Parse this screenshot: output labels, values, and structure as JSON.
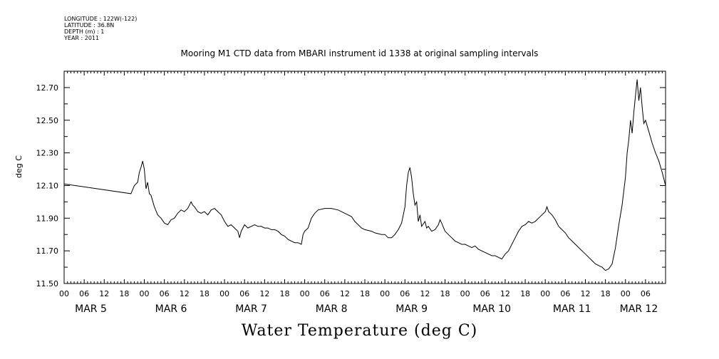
{
  "header": {
    "meta_lines": [
      "LONGITUDE : 122W(-122)",
      "LATITUDE : 36.8N",
      "DEPTH (m) : 1",
      "YEAR : 2011"
    ]
  },
  "chart_data": {
    "type": "line",
    "title": "Mooring M1 CTD data from MBARI instrument id 1338 at original sampling intervals",
    "ylabel": "deg C",
    "xlabel": "Water Temperature (deg C)",
    "ylim": [
      11.5,
      12.8
    ],
    "xlim_hours": [
      0,
      180
    ],
    "yticks": [
      11.5,
      11.7,
      11.9,
      12.1,
      12.3,
      12.5,
      12.7
    ],
    "ytick_labels": [
      "11.50",
      "11.70",
      "11.90",
      "12.10",
      "12.30",
      "12.50",
      "12.70"
    ],
    "hour_labels": [
      "00",
      "06",
      "12",
      "18",
      "00",
      "06",
      "12",
      "18",
      "00",
      "06",
      "12",
      "18",
      "00",
      "06",
      "12",
      "18",
      "00",
      "06",
      "12",
      "18",
      "00",
      "06",
      "12",
      "18",
      "00",
      "06",
      "12",
      "18",
      "00",
      "06"
    ],
    "day_labels": [
      {
        "label": "MAR  5",
        "hour": 8
      },
      {
        "label": "MAR  6",
        "hour": 32
      },
      {
        "label": "MAR  7",
        "hour": 56
      },
      {
        "label": "MAR  8",
        "hour": 80
      },
      {
        "label": "MAR  9",
        "hour": 104
      },
      {
        "label": "MAR 10",
        "hour": 128
      },
      {
        "label": "MAR 11",
        "hour": 152
      },
      {
        "label": "MAR 12",
        "hour": 172
      }
    ],
    "series": [
      {
        "color": "#000000",
        "points": [
          [
            0,
            12.11
          ],
          [
            20,
            12.05
          ],
          [
            21,
            12.1
          ],
          [
            22,
            12.12
          ],
          [
            22.5,
            12.18
          ],
          [
            23,
            12.21
          ],
          [
            23.5,
            12.25
          ],
          [
            24,
            12.2
          ],
          [
            24.5,
            12.08
          ],
          [
            25,
            12.12
          ],
          [
            25.5,
            12.05
          ],
          [
            26,
            12.04
          ],
          [
            27,
            11.97
          ],
          [
            28,
            11.92
          ],
          [
            29,
            11.9
          ],
          [
            30,
            11.87
          ],
          [
            31,
            11.86
          ],
          [
            32,
            11.89
          ],
          [
            33,
            11.9
          ],
          [
            34,
            11.93
          ],
          [
            35,
            11.95
          ],
          [
            36,
            11.94
          ],
          [
            37,
            11.96
          ],
          [
            38,
            12.0
          ],
          [
            38.5,
            11.98
          ],
          [
            39,
            11.97
          ],
          [
            40,
            11.94
          ],
          [
            41,
            11.93
          ],
          [
            42,
            11.94
          ],
          [
            43,
            11.92
          ],
          [
            44,
            11.95
          ],
          [
            45,
            11.96
          ],
          [
            46,
            11.94
          ],
          [
            47,
            11.92
          ],
          [
            48,
            11.88
          ],
          [
            49,
            11.85
          ],
          [
            50,
            11.86
          ],
          [
            51,
            11.84
          ],
          [
            52,
            11.82
          ],
          [
            52.5,
            11.78
          ],
          [
            53,
            11.82
          ],
          [
            54,
            11.86
          ],
          [
            55,
            11.84
          ],
          [
            56,
            11.85
          ],
          [
            57,
            11.86
          ],
          [
            58,
            11.85
          ],
          [
            59,
            11.85
          ],
          [
            60,
            11.84
          ],
          [
            61,
            11.84
          ],
          [
            62,
            11.83
          ],
          [
            63,
            11.83
          ],
          [
            64,
            11.82
          ],
          [
            65,
            11.8
          ],
          [
            66,
            11.79
          ],
          [
            67,
            11.77
          ],
          [
            68,
            11.76
          ],
          [
            69,
            11.75
          ],
          [
            70,
            11.75
          ],
          [
            71,
            11.74
          ],
          [
            71.5,
            11.8
          ],
          [
            72,
            11.82
          ],
          [
            73,
            11.84
          ],
          [
            74,
            11.9
          ],
          [
            75,
            11.93
          ],
          [
            76,
            11.95
          ],
          [
            78,
            11.96
          ],
          [
            80,
            11.96
          ],
          [
            82,
            11.95
          ],
          [
            84,
            11.93
          ],
          [
            86,
            11.91
          ],
          [
            87,
            11.88
          ],
          [
            88,
            11.86
          ],
          [
            89,
            11.84
          ],
          [
            90,
            11.83
          ],
          [
            92,
            11.82
          ],
          [
            93,
            11.81
          ],
          [
            95,
            11.8
          ],
          [
            96,
            11.8
          ],
          [
            97,
            11.78
          ],
          [
            98,
            11.78
          ],
          [
            99,
            11.8
          ],
          [
            100,
            11.83
          ],
          [
            101,
            11.87
          ],
          [
            102,
            11.97
          ],
          [
            102.5,
            12.1
          ],
          [
            103,
            12.18
          ],
          [
            103.5,
            12.21
          ],
          [
            104,
            12.15
          ],
          [
            104.5,
            12.05
          ],
          [
            105,
            11.98
          ],
          [
            105.5,
            12.0
          ],
          [
            106,
            11.88
          ],
          [
            106.5,
            11.92
          ],
          [
            107,
            11.85
          ],
          [
            108,
            11.88
          ],
          [
            108.5,
            11.84
          ],
          [
            109,
            11.85
          ],
          [
            110,
            11.82
          ],
          [
            111,
            11.83
          ],
          [
            112,
            11.86
          ],
          [
            112.5,
            11.89
          ],
          [
            113,
            11.87
          ],
          [
            114,
            11.82
          ],
          [
            115,
            11.8
          ],
          [
            116,
            11.78
          ],
          [
            117,
            11.76
          ],
          [
            118,
            11.75
          ],
          [
            119,
            11.74
          ],
          [
            120,
            11.74
          ],
          [
            121,
            11.73
          ],
          [
            122,
            11.72
          ],
          [
            123,
            11.73
          ],
          [
            124,
            11.71
          ],
          [
            125,
            11.7
          ],
          [
            126,
            11.69
          ],
          [
            127,
            11.68
          ],
          [
            128,
            11.67
          ],
          [
            129,
            11.67
          ],
          [
            130,
            11.66
          ],
          [
            131,
            11.65
          ],
          [
            132,
            11.68
          ],
          [
            133,
            11.7
          ],
          [
            134,
            11.74
          ],
          [
            135,
            11.78
          ],
          [
            136,
            11.82
          ],
          [
            137,
            11.85
          ],
          [
            138,
            11.86
          ],
          [
            139,
            11.88
          ],
          [
            140,
            11.87
          ],
          [
            141,
            11.88
          ],
          [
            142,
            11.9
          ],
          [
            143,
            11.92
          ],
          [
            144,
            11.94
          ],
          [
            144.5,
            11.97
          ],
          [
            145,
            11.94
          ],
          [
            146,
            11.92
          ],
          [
            147,
            11.89
          ],
          [
            148,
            11.85
          ],
          [
            149,
            11.83
          ],
          [
            150,
            11.81
          ],
          [
            151,
            11.78
          ],
          [
            152,
            11.76
          ],
          [
            153,
            11.74
          ],
          [
            154,
            11.72
          ],
          [
            155,
            11.7
          ],
          [
            156,
            11.68
          ],
          [
            157,
            11.66
          ],
          [
            158,
            11.64
          ],
          [
            159,
            11.62
          ],
          [
            160,
            11.61
          ],
          [
            161,
            11.6
          ],
          [
            162,
            11.58
          ],
          [
            163,
            11.59
          ],
          [
            164,
            11.62
          ],
          [
            165,
            11.72
          ],
          [
            166,
            11.86
          ],
          [
            167,
            11.98
          ],
          [
            168,
            12.15
          ],
          [
            168.5,
            12.3
          ],
          [
            169,
            12.38
          ],
          [
            169.5,
            12.5
          ],
          [
            170,
            12.42
          ],
          [
            170.5,
            12.55
          ],
          [
            171,
            12.65
          ],
          [
            171.5,
            12.75
          ],
          [
            172,
            12.62
          ],
          [
            172.5,
            12.7
          ],
          [
            173,
            12.58
          ],
          [
            173.5,
            12.48
          ],
          [
            174,
            12.5
          ],
          [
            175,
            12.43
          ],
          [
            176,
            12.36
          ],
          [
            177,
            12.3
          ],
          [
            178,
            12.25
          ],
          [
            179,
            12.18
          ],
          [
            180,
            12.1
          ]
        ]
      }
    ]
  }
}
